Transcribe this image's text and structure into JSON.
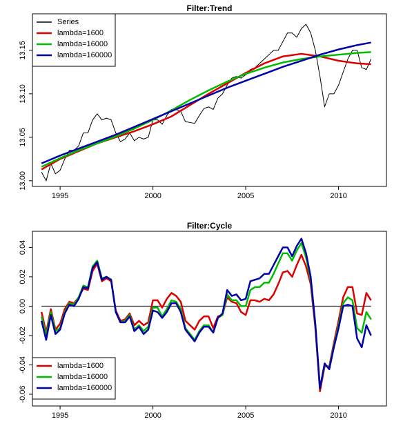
{
  "chart_data": [
    {
      "type": "line",
      "title": "Filter:Trend",
      "xlim": [
        1993.51,
        2012.58
      ],
      "xticks": [
        1995,
        2000,
        2005,
        2010
      ],
      "ylim": [
        12.9935,
        13.192
      ],
      "yticks": [
        {
          "value": 13,
          "label": "13.00"
        },
        13.05,
        {
          "value": 13.1,
          "label": "13.10"
        },
        13.15
      ],
      "legend": "topleft",
      "x": [
        1994,
        1994.25,
        1994.5,
        1994.75,
        1995,
        1995.25,
        1995.5,
        1995.75,
        1996,
        1996.25,
        1996.5,
        1996.75,
        1997,
        1997.25,
        1997.5,
        1997.75,
        1998,
        1998.25,
        1998.5,
        1998.75,
        1999,
        1999.25,
        1999.5,
        1999.75,
        2000,
        2000.25,
        2000.5,
        2000.75,
        2001,
        2001.25,
        2001.5,
        2001.75,
        2002,
        2002.25,
        2002.5,
        2002.75,
        2003,
        2003.25,
        2003.5,
        2003.75,
        2004,
        2004.25,
        2004.5,
        2004.75,
        2005,
        2005.25,
        2005.5,
        2005.75,
        2006,
        2006.25,
        2006.5,
        2006.75,
        2007,
        2007.25,
        2007.5,
        2007.75,
        2008,
        2008.25,
        2008.5,
        2008.75,
        2009,
        2009.25,
        2009.5,
        2009.75,
        2010,
        2010.25,
        2010.5,
        2010.75,
        2011,
        2011.25,
        2011.5,
        2011.75
      ],
      "series": [
        {
          "name": "Series",
          "color": "#000000",
          "values": [
            13.01,
            13.0,
            13.02,
            13.008,
            13.012,
            13.025,
            13.035,
            13.035,
            13.04,
            13.055,
            13.055,
            13.07,
            13.077,
            13.07,
            13.072,
            13.07,
            13.055,
            13.045,
            13.048,
            13.055,
            13.046,
            13.05,
            13.048,
            13.05,
            13.07,
            13.07,
            13.065,
            13.075,
            13.082,
            13.082,
            13.08,
            13.068,
            13.067,
            13.066,
            13.075,
            13.083,
            13.085,
            13.082,
            13.095,
            13.1,
            13.11,
            13.118,
            13.12,
            13.118,
            13.122,
            13.128,
            13.13,
            13.135,
            13.14,
            13.145,
            13.15,
            13.15,
            13.16,
            13.17,
            13.17,
            13.165,
            13.175,
            13.18,
            13.17,
            13.15,
            13.12,
            13.085,
            13.1,
            13.1,
            13.11,
            13.125,
            13.14,
            13.15,
            13.15,
            13.13,
            13.128,
            13.14
          ]
        },
        {
          "name": "lambda=1600",
          "color": "#dd0000",
          "x": [
            1994,
            1995,
            1996,
            1997,
            1998,
            1999,
            2000,
            2001,
            2002,
            2003,
            2004,
            2005,
            2006,
            2007,
            2008,
            2009,
            2010,
            2011,
            2011.75
          ],
          "values": [
            13.013,
            13.025,
            13.034,
            13.043,
            13.05,
            13.057,
            13.065,
            13.074,
            13.087,
            13.1,
            13.112,
            13.124,
            13.135,
            13.143,
            13.146,
            13.143,
            13.138,
            13.135,
            13.134
          ]
        },
        {
          "name": "lambda=16000",
          "color": "#00bb00",
          "x": [
            1994,
            1995,
            1996,
            1997,
            1998,
            1999,
            2000,
            2001,
            2002,
            2003,
            2004,
            2005,
            2006,
            2007,
            2008,
            2009,
            2010,
            2011,
            2011.75
          ],
          "values": [
            13.016,
            13.026,
            13.035,
            13.043,
            13.051,
            13.06,
            13.07,
            13.081,
            13.093,
            13.104,
            13.114,
            13.123,
            13.13,
            13.136,
            13.14,
            13.143,
            13.145,
            13.147,
            13.148
          ]
        },
        {
          "name": "lambda=160000",
          "color": "#0000aa",
          "x": [
            1994,
            1995,
            1996,
            1997,
            1998,
            1999,
            2000,
            2001,
            2002,
            2003,
            2004,
            2005,
            2006,
            2007,
            2008,
            2009,
            2010,
            2011,
            2011.75
          ],
          "values": [
            13.02,
            13.029,
            13.037,
            13.045,
            13.053,
            13.062,
            13.071,
            13.08,
            13.089,
            13.098,
            13.107,
            13.115,
            13.123,
            13.131,
            13.138,
            13.145,
            13.151,
            13.156,
            13.159
          ]
        }
      ]
    },
    {
      "type": "line",
      "title": "Filter:Cycle",
      "xlim": [
        1993.51,
        2012.58
      ],
      "xticks": [
        1995,
        2000,
        2005,
        2010
      ],
      "ylim": [
        -0.068,
        0.051
      ],
      "yticks": [
        -0.06,
        -0.04,
        -0.02,
        {
          "value": 0,
          "label": "0.00"
        },
        0.02,
        0.04
      ],
      "legend": "bottomleft",
      "x": [
        1994,
        1994.25,
        1994.5,
        1994.75,
        1995,
        1995.25,
        1995.5,
        1995.75,
        1996,
        1996.25,
        1996.5,
        1996.75,
        1997,
        1997.25,
        1997.5,
        1997.75,
        1998,
        1998.25,
        1998.5,
        1998.75,
        1999,
        1999.25,
        1999.5,
        1999.75,
        2000,
        2000.25,
        2000.5,
        2000.75,
        2001,
        2001.25,
        2001.5,
        2001.75,
        2002,
        2002.25,
        2002.5,
        2002.75,
        2003,
        2003.25,
        2003.5,
        2003.75,
        2004,
        2004.25,
        2004.5,
        2004.75,
        2005,
        2005.25,
        2005.5,
        2005.75,
        2006,
        2006.25,
        2006.5,
        2006.75,
        2007,
        2007.25,
        2007.5,
        2007.75,
        2008,
        2008.25,
        2008.5,
        2008.75,
        2009,
        2009.25,
        2009.5,
        2009.75,
        2010,
        2010.25,
        2010.5,
        2010.75,
        2011,
        2011.25,
        2011.5,
        2011.75
      ],
      "series": [
        {
          "name": "lambda=1600",
          "color": "#dd0000",
          "values": [
            -0.004,
            -0.018,
            -0.002,
            -0.016,
            -0.012,
            -0.002,
            0.003,
            0.002,
            0.006,
            0.012,
            0.011,
            0.024,
            0.029,
            0.017,
            0.019,
            0.017,
            -0.003,
            -0.01,
            -0.009,
            -0.005,
            -0.013,
            -0.01,
            -0.013,
            -0.011,
            0.004,
            0.004,
            -0.001,
            0.005,
            0.009,
            0.007,
            0.003,
            -0.01,
            -0.013,
            -0.016,
            -0.01,
            -0.007,
            -0.007,
            -0.015,
            -0.007,
            -0.006,
            0.006,
            0.003,
            0.002,
            -0.004,
            -0.006,
            0.004,
            0.004,
            0.003,
            0.005,
            0.004,
            0.008,
            0.015,
            0.023,
            0.024,
            0.02,
            0.028,
            0.035,
            0.027,
            0.015,
            -0.015,
            -0.058,
            -0.041,
            -0.041,
            -0.025,
            -0.01,
            0.006,
            0.013,
            0.013,
            -0.005,
            -0.006,
            0.009,
            0.004
          ]
        },
        {
          "name": "lambda=16000",
          "color": "#00bb00",
          "values": [
            -0.007,
            -0.02,
            -0.004,
            -0.017,
            -0.015,
            -0.004,
            0.002,
            0.001,
            0.006,
            0.014,
            0.013,
            0.027,
            0.031,
            0.019,
            0.02,
            0.018,
            -0.004,
            -0.011,
            -0.01,
            -0.006,
            -0.016,
            -0.013,
            -0.017,
            -0.014,
            -0.001,
            -0.001,
            -0.007,
            -0.002,
            0.004,
            0.003,
            -0.002,
            -0.015,
            -0.019,
            -0.023,
            -0.017,
            -0.013,
            -0.013,
            -0.018,
            -0.008,
            -0.006,
            0.008,
            0.004,
            0.004,
            0.0,
            0.0,
            0.011,
            0.013,
            0.013,
            0.016,
            0.016,
            0.022,
            0.029,
            0.036,
            0.036,
            0.031,
            0.038,
            0.043,
            0.033,
            0.018,
            -0.013,
            -0.056,
            -0.04,
            -0.042,
            -0.027,
            -0.013,
            0.002,
            0.006,
            0.004,
            -0.015,
            -0.018,
            -0.004,
            -0.009
          ]
        },
        {
          "name": "lambda=160000",
          "color": "#0000aa",
          "values": [
            -0.01,
            -0.023,
            -0.006,
            -0.019,
            -0.016,
            -0.005,
            0.001,
            0.0,
            0.005,
            0.013,
            0.012,
            0.026,
            0.03,
            0.018,
            0.02,
            0.018,
            -0.004,
            -0.011,
            -0.011,
            -0.007,
            -0.017,
            -0.014,
            -0.019,
            -0.016,
            -0.003,
            -0.004,
            -0.008,
            -0.004,
            0.002,
            0.002,
            -0.004,
            -0.016,
            -0.02,
            -0.024,
            -0.018,
            -0.014,
            -0.014,
            -0.018,
            -0.008,
            -0.005,
            0.011,
            0.007,
            0.008,
            0.004,
            0.005,
            0.017,
            0.018,
            0.019,
            0.022,
            0.022,
            0.028,
            0.034,
            0.04,
            0.04,
            0.034,
            0.041,
            0.046,
            0.036,
            0.02,
            -0.012,
            -0.056,
            -0.039,
            -0.043,
            -0.028,
            -0.015,
            0.0,
            0.001,
            0.0,
            -0.022,
            -0.028,
            -0.013,
            -0.02
          ]
        }
      ]
    }
  ]
}
